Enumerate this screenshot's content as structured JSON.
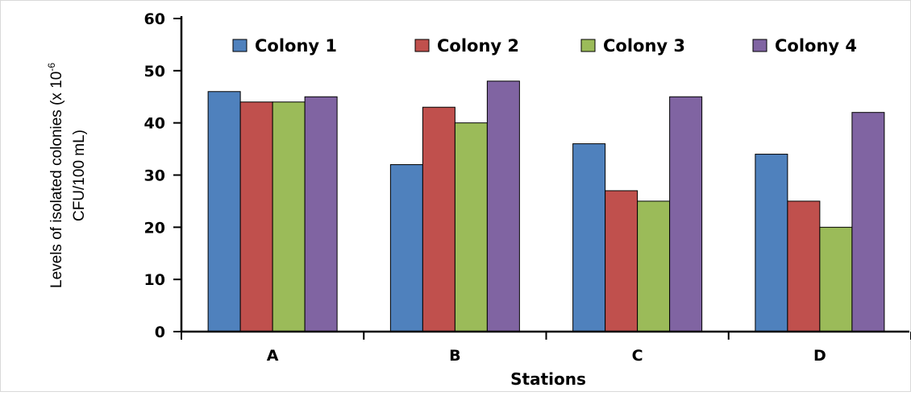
{
  "chart_data": {
    "type": "bar",
    "categories": [
      "A",
      "B",
      "C",
      "D"
    ],
    "series": [
      {
        "name": "Colony 1",
        "color": "#4F81BD",
        "values": [
          46,
          32,
          36,
          34
        ]
      },
      {
        "name": "Colony 2",
        "color": "#C0504D",
        "values": [
          44,
          43,
          27,
          25
        ]
      },
      {
        "name": "Colony 3",
        "color": "#9BBB59",
        "values": [
          44,
          40,
          25,
          20
        ]
      },
      {
        "name": "Colony 4",
        "color": "#8064A2",
        "values": [
          45,
          48,
          45,
          42
        ]
      }
    ],
    "xlabel": "Stations",
    "ylabel_line1": "Levels of isolated colonies (x 10",
    "ylabel_sup": "-6",
    "ylabel_line2": "CFU/100 mL)",
    "ylim": [
      0,
      60
    ],
    "yticks": [
      0,
      10,
      20,
      30,
      40,
      50,
      60
    ],
    "grid": false,
    "legend_position": "top"
  }
}
